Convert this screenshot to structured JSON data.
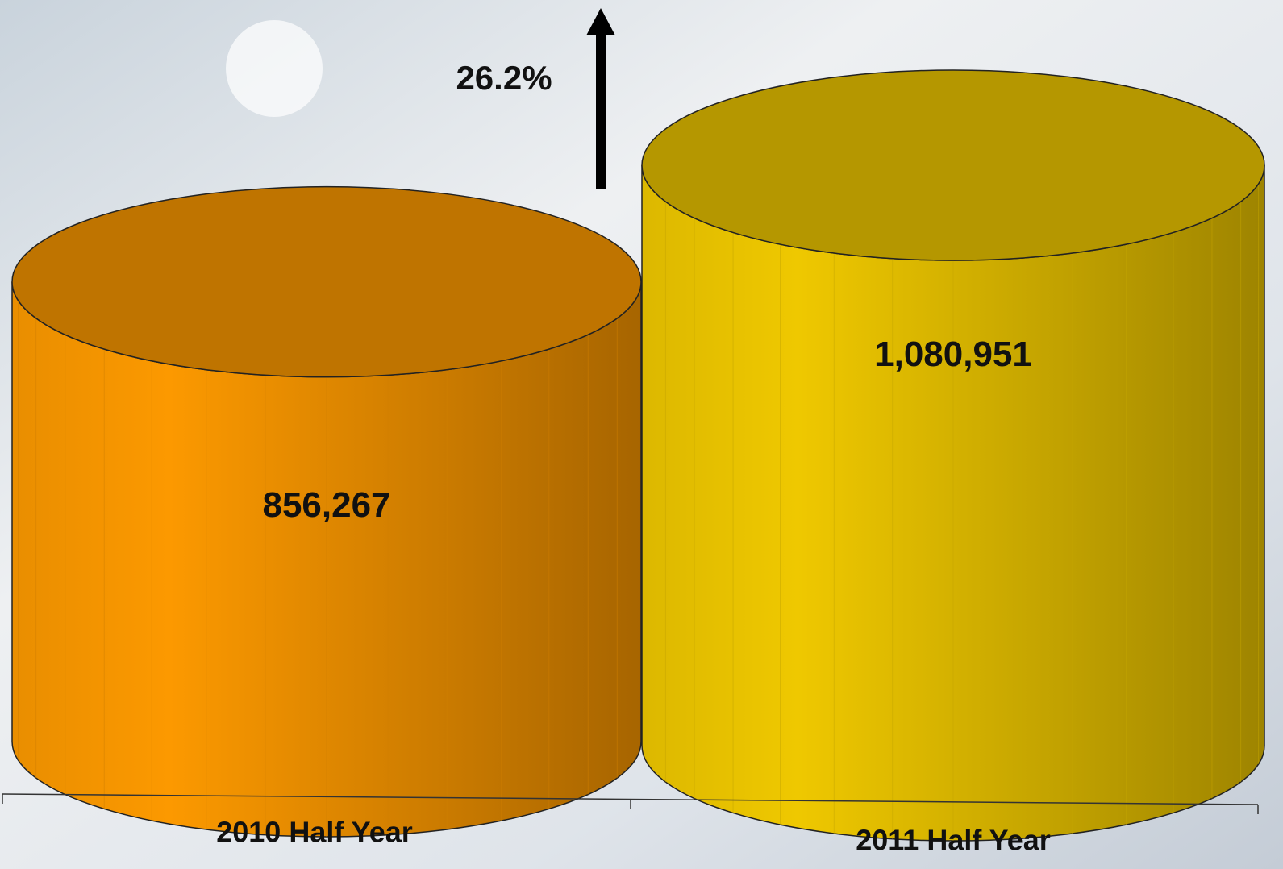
{
  "chart_data": {
    "type": "cylinder",
    "categories": [
      "2010 Half Year",
      "2011 Half Year"
    ],
    "values": [
      856267,
      1080951
    ],
    "value_labels": [
      "856,267",
      "1,080,951"
    ],
    "colors": [
      "#f59500",
      "#e8c200"
    ],
    "annotation": "26.2%"
  }
}
